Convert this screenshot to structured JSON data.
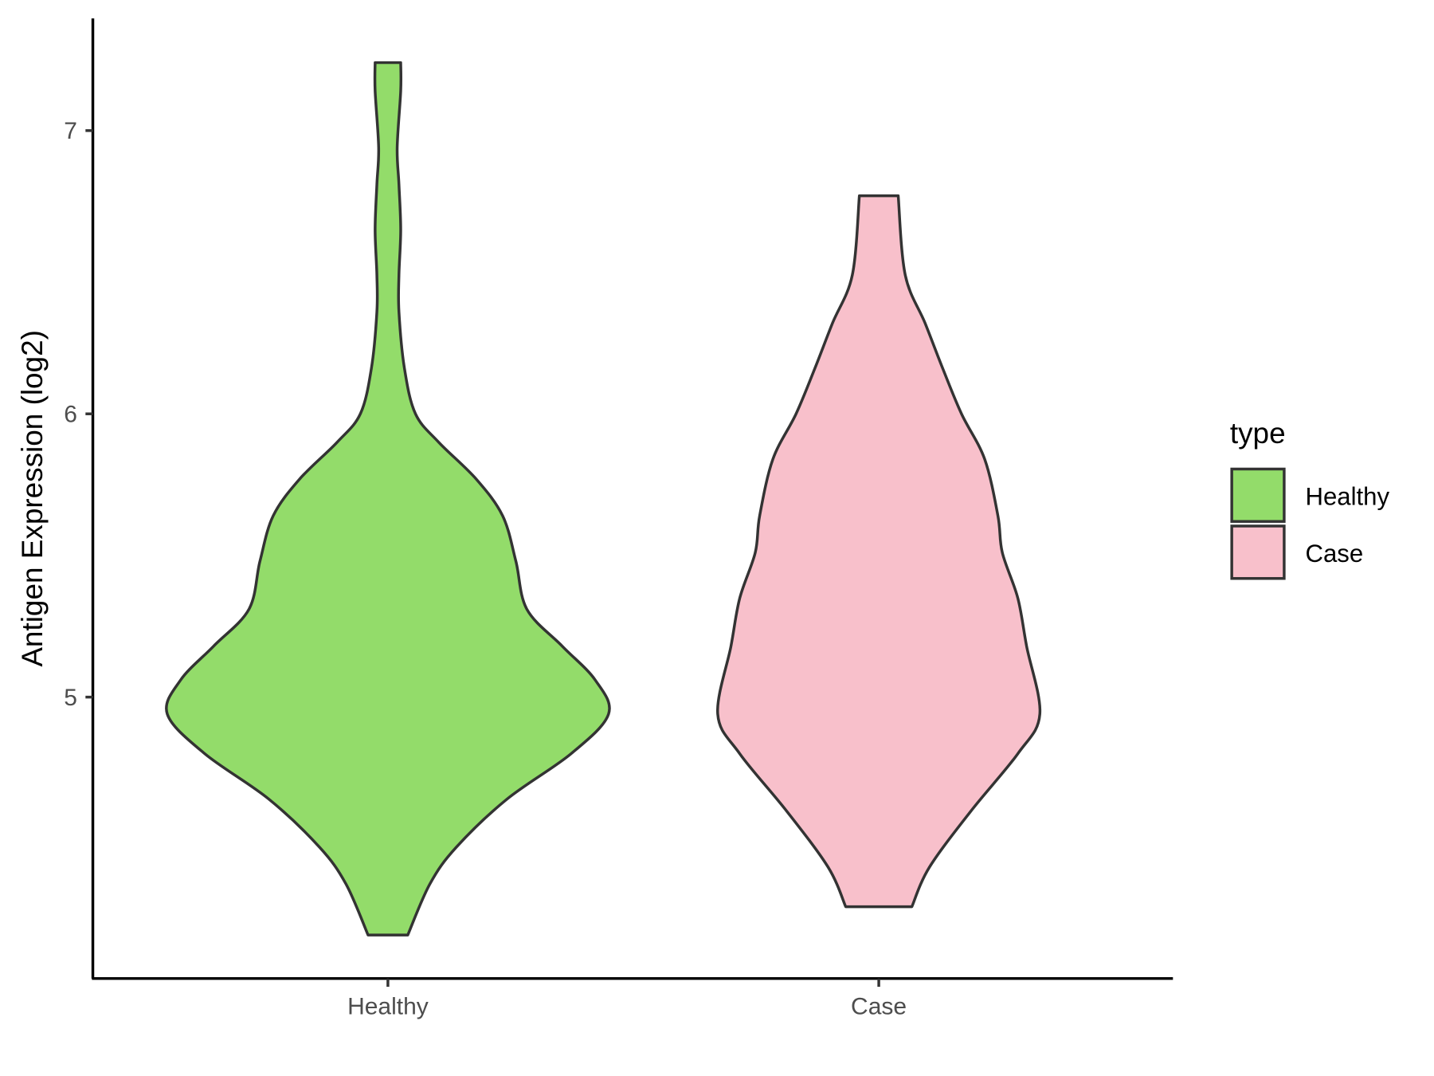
{
  "chart_data": {
    "type": "violin",
    "title": "",
    "xlabel": "",
    "ylabel": "Antigen Expression (log2)",
    "ylim": [
      4.01,
      7.38
    ],
    "yticks": [
      5,
      6,
      7
    ],
    "categories": [
      "Healthy",
      "Case"
    ],
    "legend": {
      "title": "type",
      "position": "right",
      "entries": [
        "Healthy",
        "Case"
      ]
    },
    "colors": {
      "Healthy": "#93DC6A",
      "Case": "#F8C0CB",
      "outline": "#333333"
    },
    "series": [
      {
        "name": "Healthy",
        "min": 4.16,
        "max": 7.24,
        "profile": [
          [
            4.16,
            0.09
          ],
          [
            4.34,
            0.19
          ],
          [
            4.47,
            0.31
          ],
          [
            4.64,
            0.54
          ],
          [
            4.8,
            0.83
          ],
          [
            4.94,
            1.0
          ],
          [
            5.06,
            0.94
          ],
          [
            5.18,
            0.79
          ],
          [
            5.31,
            0.63
          ],
          [
            5.48,
            0.58
          ],
          [
            5.64,
            0.52
          ],
          [
            5.77,
            0.4
          ],
          [
            5.9,
            0.23
          ],
          [
            6.0,
            0.125
          ],
          [
            6.16,
            0.075
          ],
          [
            6.36,
            0.05
          ],
          [
            6.49,
            0.05
          ],
          [
            6.65,
            0.058
          ],
          [
            6.81,
            0.05
          ],
          [
            6.94,
            0.042
          ],
          [
            7.14,
            0.058
          ],
          [
            7.24,
            0.058
          ]
        ]
      },
      {
        "name": "Case",
        "min": 4.26,
        "max": 6.77,
        "profile": [
          [
            4.26,
            0.15
          ],
          [
            4.4,
            0.23
          ],
          [
            4.6,
            0.42
          ],
          [
            4.8,
            0.63
          ],
          [
            4.94,
            0.73
          ],
          [
            5.18,
            0.67
          ],
          [
            5.35,
            0.63
          ],
          [
            5.51,
            0.56
          ],
          [
            5.64,
            0.54
          ],
          [
            5.84,
            0.48
          ],
          [
            6.0,
            0.375
          ],
          [
            6.16,
            0.29
          ],
          [
            6.32,
            0.21
          ],
          [
            6.49,
            0.12
          ],
          [
            6.77,
            0.088
          ]
        ]
      }
    ]
  }
}
